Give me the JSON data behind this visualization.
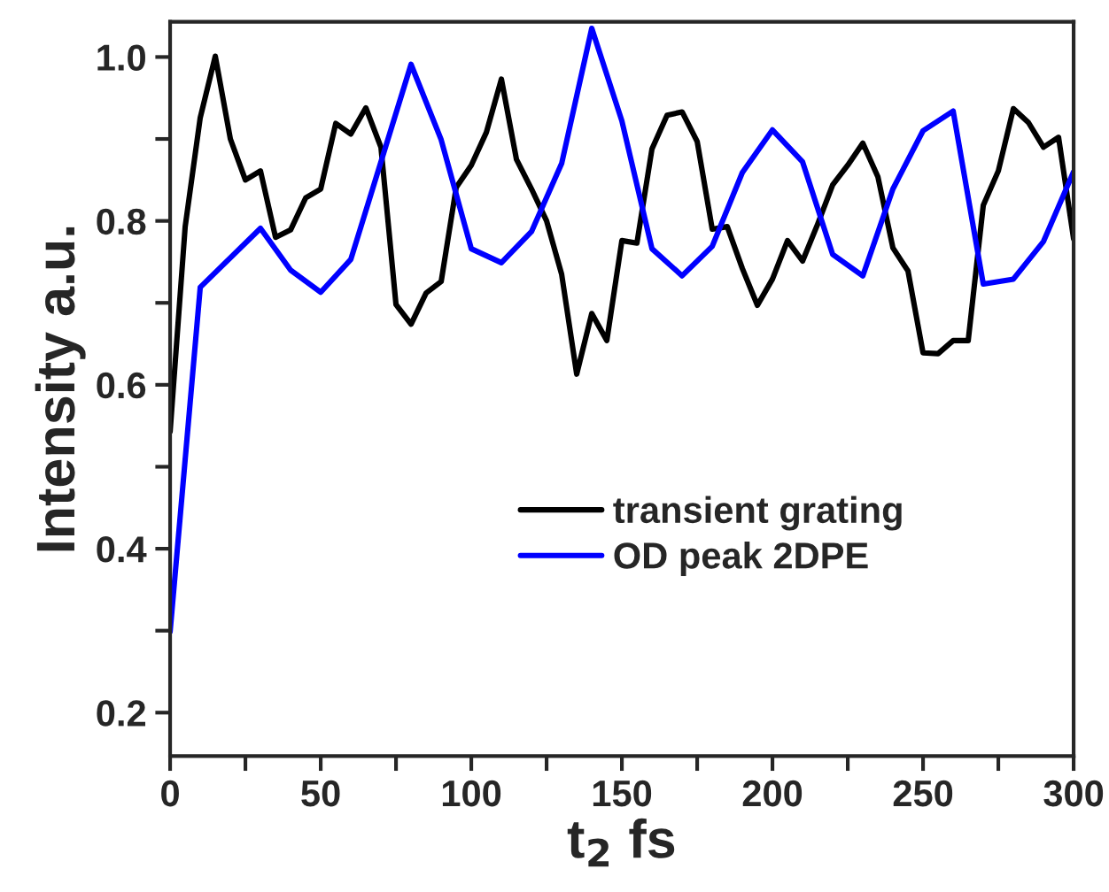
{
  "chart_data": {
    "type": "line",
    "xlabel": "t$_{2}$ fs",
    "ylabel": "Intensity a.u.",
    "xlim": [
      0,
      300
    ],
    "ylim": [
      0.147,
      1.043
    ],
    "xticks": [
      0,
      {
        "value": 25,
        "label": null
      },
      50,
      {
        "value": 75,
        "label": null
      },
      100,
      {
        "value": 125,
        "label": null
      },
      150,
      {
        "value": 175,
        "label": null
      },
      200,
      {
        "value": 225,
        "label": null
      },
      250,
      {
        "value": 275,
        "label": null
      },
      300
    ],
    "yticks": [
      {
        "value": 0.2,
        "label": "0.2"
      },
      {
        "value": 0.3,
        "label": null
      },
      {
        "value": 0.4,
        "label": "0.4"
      },
      {
        "value": 0.5,
        "label": null
      },
      {
        "value": 0.6,
        "label": "0.6"
      },
      {
        "value": 0.7,
        "label": null
      },
      {
        "value": 0.8,
        "label": "0.8"
      },
      {
        "value": 0.9,
        "label": null
      },
      {
        "value": 1.0,
        "label": "1.0"
      }
    ],
    "grid": false,
    "legend": "bottom",
    "marker": "none",
    "line_style": "solid",
    "series": [
      {
        "name": "transient grating",
        "color": "#000000",
        "x": [
          0,
          5,
          10,
          15,
          20,
          25,
          30,
          35,
          40,
          45,
          50,
          55,
          60,
          65,
          70,
          75,
          80,
          85,
          90,
          95,
          100,
          105,
          110,
          115,
          120,
          125,
          130,
          135,
          140,
          145,
          150,
          155,
          160,
          165,
          170,
          175,
          180,
          185,
          190,
          195,
          200,
          205,
          210,
          215,
          220,
          225,
          230,
          235,
          240,
          245,
          250,
          255,
          260,
          265,
          270,
          275,
          280,
          285,
          290,
          295,
          300
        ],
        "values": [
          0.543,
          0.793,
          0.926,
          1.001,
          0.9,
          0.85,
          0.861,
          0.78,
          0.789,
          0.828,
          0.839,
          0.919,
          0.906,
          0.938,
          0.89,
          0.698,
          0.674,
          0.712,
          0.726,
          0.841,
          0.868,
          0.908,
          0.973,
          0.875,
          0.839,
          0.8,
          0.735,
          0.613,
          0.687,
          0.654,
          0.776,
          0.773,
          0.888,
          0.929,
          0.933,
          0.897,
          0.79,
          0.793,
          0.742,
          0.697,
          0.729,
          0.776,
          0.751,
          0.796,
          0.844,
          0.868,
          0.895,
          0.854,
          0.767,
          0.739,
          0.639,
          0.638,
          0.654,
          0.654,
          0.819,
          0.861,
          0.937,
          0.92,
          0.89,
          0.902,
          0.778
        ]
      },
      {
        "name": "OD peak 2DPE",
        "color": "#0000ff",
        "x": [
          0,
          10,
          30,
          40,
          50,
          60,
          80,
          90,
          100,
          110,
          120,
          130,
          140,
          150,
          160,
          170,
          180,
          190,
          200,
          210,
          220,
          230,
          240,
          250,
          260,
          270,
          280,
          290,
          300
        ],
        "values": [
          0.299,
          0.719,
          0.791,
          0.74,
          0.713,
          0.753,
          0.991,
          0.899,
          0.766,
          0.749,
          0.787,
          0.87,
          1.035,
          0.922,
          0.766,
          0.733,
          0.769,
          0.859,
          0.911,
          0.872,
          0.759,
          0.733,
          0.839,
          0.91,
          0.934,
          0.723,
          0.729,
          0.775,
          0.86
        ]
      }
    ]
  }
}
